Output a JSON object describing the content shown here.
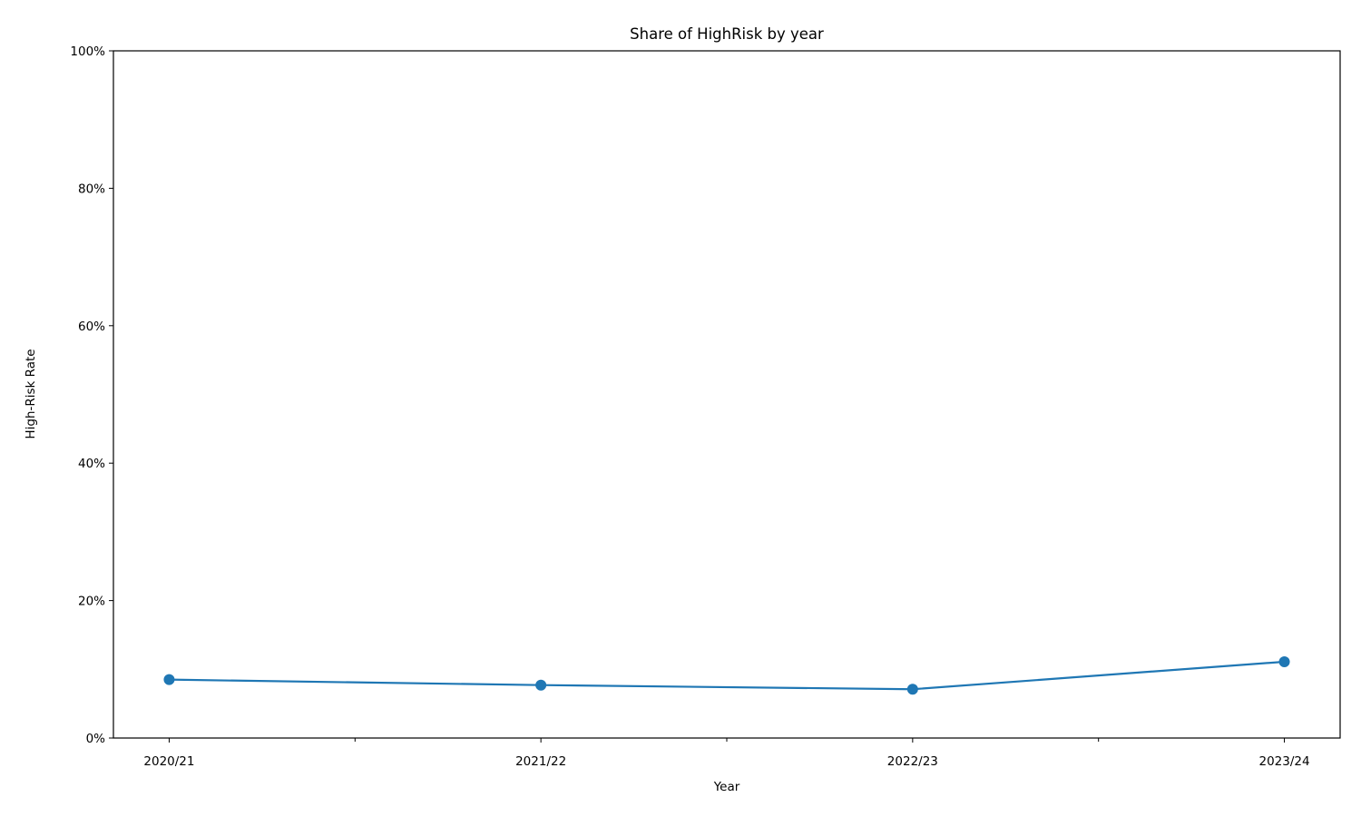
{
  "chart_data": {
    "type": "line",
    "title": "Share of HighRisk by year",
    "xlabel": "Year",
    "ylabel": "High-Risk Rate",
    "categories": [
      "2020/21",
      "2021/22",
      "2022/23",
      "2023/24"
    ],
    "minor_x_ticks": [
      0.5,
      1.5,
      2.5
    ],
    "series": [
      {
        "values": [
          0.085,
          0.077,
          0.071,
          0.111
        ],
        "color": "#1f77b4"
      }
    ],
    "ylim": [
      0,
      1
    ],
    "y_ticks": [
      0,
      0.2,
      0.4,
      0.6,
      0.8,
      1.0
    ],
    "y_tick_labels": [
      "0%",
      "20%",
      "40%",
      "60%",
      "80%",
      "100%"
    ],
    "grid": false,
    "legend": "none"
  }
}
